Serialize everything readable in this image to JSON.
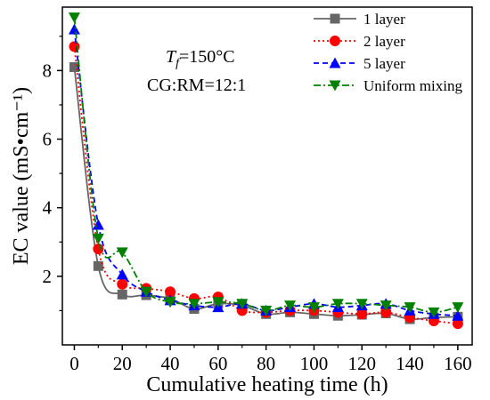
{
  "chart_data": {
    "type": "line",
    "title": "",
    "xlabel": "Cumulative heating time (h)",
    "ylabel": "EC value (mS•cm⁻¹)",
    "xlim": [
      -5,
      166
    ],
    "ylim": [
      0,
      9.85
    ],
    "xticks": [
      0,
      20,
      40,
      60,
      80,
      100,
      120,
      140,
      160
    ],
    "yticks": [
      2,
      4,
      6,
      8
    ],
    "grid": false,
    "legend_position": "top-right",
    "annotations": {
      "tf_symbol": "T",
      "tf_subscript": "f",
      "tf_value": "=150°C",
      "ratio": "CG:RM=12:1"
    },
    "x": [
      0,
      10,
      20,
      30,
      40,
      50,
      60,
      70,
      80,
      90,
      100,
      110,
      120,
      130,
      140,
      150,
      160
    ],
    "series": [
      {
        "name": "1 layer",
        "color": "#666666",
        "marker": "square",
        "dash": "solid",
        "values": [
          8.1,
          2.3,
          1.47,
          1.45,
          1.35,
          1.05,
          1.2,
          1.15,
          0.9,
          0.95,
          0.9,
          0.85,
          0.88,
          0.92,
          0.75,
          0.8,
          0.82
        ]
      },
      {
        "name": "2 layer",
        "color": "#ff0000",
        "marker": "circle",
        "dash": "dotted",
        "values": [
          8.7,
          2.8,
          1.77,
          1.65,
          1.55,
          1.35,
          1.4,
          1.0,
          0.95,
          1.0,
          1.0,
          0.95,
          0.9,
          0.95,
          0.8,
          0.7,
          0.62
        ]
      },
      {
        "name": "5 layer",
        "color": "#0000ff",
        "marker": "triangle-up",
        "dash": "dashed",
        "values": [
          9.2,
          3.5,
          2.05,
          1.55,
          1.3,
          1.15,
          1.1,
          1.2,
          1.0,
          1.1,
          1.2,
          1.1,
          1.15,
          1.2,
          1.0,
          0.9,
          0.85
        ]
      },
      {
        "name": "Uniform mixing",
        "color": "#008000",
        "marker": "triangle-down",
        "dash": "dashdot",
        "values": [
          9.55,
          3.1,
          2.7,
          1.55,
          1.25,
          1.2,
          1.25,
          1.2,
          1.0,
          1.15,
          1.1,
          1.2,
          1.2,
          1.15,
          1.1,
          0.95,
          1.1
        ]
      }
    ]
  }
}
